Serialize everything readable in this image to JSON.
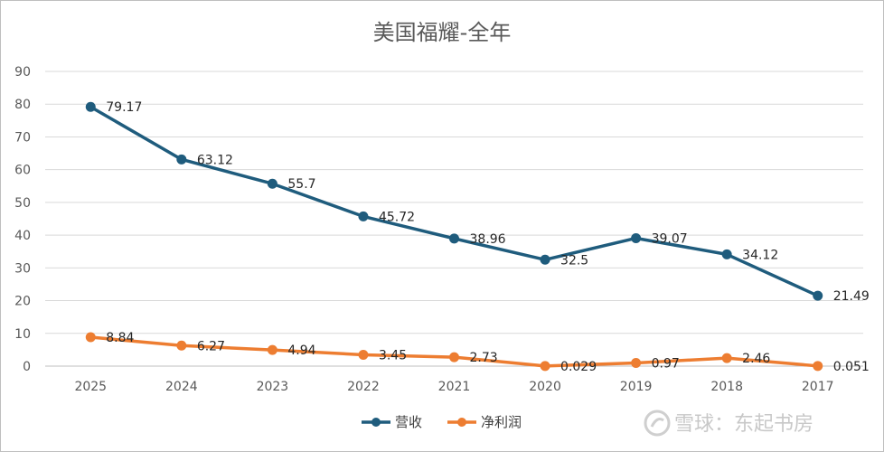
{
  "chart_data": {
    "type": "line",
    "title": "美国福耀-全年",
    "categories": [
      "2025",
      "2024",
      "2023",
      "2022",
      "2021",
      "2020",
      "2019",
      "2018",
      "2017"
    ],
    "ylim": [
      0,
      90
    ],
    "yticks": [
      0,
      10,
      20,
      30,
      40,
      50,
      60,
      70,
      80,
      90
    ],
    "grid": true,
    "legend_position": "bottom",
    "series": [
      {
        "name": "营收",
        "color": "#1f5c7d",
        "values": [
          79.17,
          63.12,
          55.7,
          45.72,
          38.96,
          32.5,
          39.07,
          34.12,
          21.49
        ],
        "labels": [
          "79.17",
          "63.12",
          "55.7",
          "45.72",
          "38.96",
          "32.5",
          "39.07",
          "34.12",
          "21.49"
        ]
      },
      {
        "name": "净利润",
        "color": "#ed7d31",
        "values": [
          8.84,
          6.27,
          4.94,
          3.45,
          2.73,
          0.029,
          0.97,
          2.46,
          0.051
        ],
        "labels": [
          "8.84",
          "6.27",
          "4.94",
          "3.45",
          "2.73",
          "0.029",
          "0.97",
          "2.46",
          "0.051"
        ]
      }
    ]
  },
  "watermark": {
    "text": "雪球：东起书房",
    "icon": "snowball-logo-icon"
  }
}
